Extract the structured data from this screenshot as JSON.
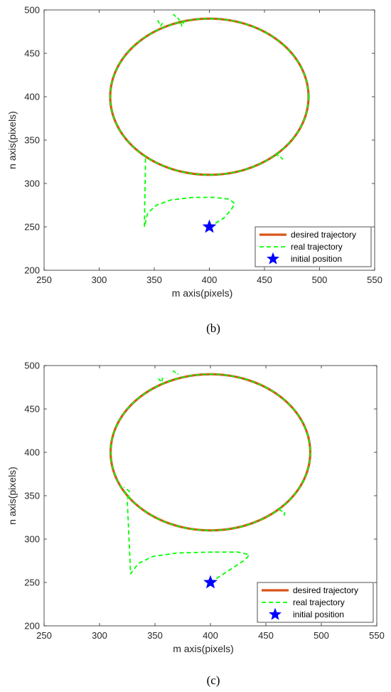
{
  "chart_data": [
    {
      "type": "line",
      "caption": "(b)",
      "xlabel": "m axis(pixels)",
      "ylabel": "n axis(pixels)",
      "xlim": [
        250,
        550
      ],
      "ylim": [
        200,
        500
      ],
      "xticks": [
        250,
        300,
        350,
        400,
        450,
        500,
        550
      ],
      "yticks": [
        200,
        250,
        300,
        350,
        400,
        450,
        500
      ],
      "grid": false,
      "legend_position": "bottom-right",
      "series": [
        {
          "name": "desired trajectory",
          "style": "solid",
          "color": "#d95319",
          "shape": "ellipse",
          "center": [
            400,
            400
          ],
          "radii": [
            90,
            90
          ]
        },
        {
          "name": "real trajectory",
          "style": "dashed",
          "color": "#00ff00",
          "shape": "ellipse",
          "center": [
            400,
            400
          ],
          "radii": [
            90,
            90
          ],
          "approach_path": [
            [
              400,
              250
            ],
            [
              412,
              258
            ],
            [
              421,
              268
            ],
            [
              423,
              278
            ],
            [
              410,
              283
            ],
            [
              385,
              283
            ],
            [
              362,
              280
            ],
            [
              348,
              272
            ],
            [
              342,
              262
            ],
            [
              340,
              250
            ],
            [
              340,
              330
            ],
            [
              344,
              325
            ],
            [
              340,
              320
            ]
          ],
          "approach": [
            [
              400,
              250
            ],
            [
              413,
              260
            ],
            [
              420,
              270
            ],
            [
              423,
              277
            ],
            [
              418,
              282
            ],
            [
              404,
              284
            ],
            [
              385,
              284
            ],
            [
              365,
              281
            ],
            [
              352,
              275
            ],
            [
              344,
              266
            ],
            [
              341,
              250
            ],
            [
              342,
              322
            ],
            [
              342,
              330
            ]
          ],
          "disturbances": [
            [
              [
                353,
                488
              ],
              [
                356,
                482
              ],
              [
                358,
                486
              ]
            ],
            [
              [
                367,
                495
              ],
              [
                372,
                490
              ],
              [
                375,
                482
              ],
              [
                378,
                488
              ]
            ],
            [
              [
                460,
                334
              ],
              [
                465,
                330
              ],
              [
                468,
                326
              ]
            ]
          ]
        },
        {
          "name": "initial position",
          "style": "marker",
          "marker": "star",
          "color": "#0000ff",
          "x": [
            400
          ],
          "y": [
            250
          ]
        }
      ]
    },
    {
      "type": "line",
      "caption": "(c)",
      "xlabel": "m axis(pixels)",
      "ylabel": "n axis(pixels)",
      "xlim": [
        250,
        550
      ],
      "ylim": [
        200,
        500
      ],
      "xticks": [
        250,
        300,
        350,
        400,
        450,
        500,
        550
      ],
      "yticks": [
        200,
        250,
        300,
        350,
        400,
        450,
        500
      ],
      "grid": false,
      "legend_position": "bottom-right",
      "series": [
        {
          "name": "desired trajectory",
          "style": "solid",
          "color": "#d95319",
          "shape": "ellipse",
          "center": [
            400,
            400
          ],
          "radii": [
            90,
            90
          ]
        },
        {
          "name": "real trajectory",
          "style": "dashed",
          "color": "#00ff00",
          "shape": "ellipse",
          "center": [
            400,
            400
          ],
          "radii": [
            90,
            90
          ],
          "approach": [
            [
              400,
              250
            ],
            [
              412,
              260
            ],
            [
              424,
              270
            ],
            [
              432,
              277
            ],
            [
              435,
              282
            ],
            [
              425,
              285
            ],
            [
              400,
              285
            ],
            [
              370,
              284
            ],
            [
              348,
              280
            ],
            [
              335,
              272
            ],
            [
              328,
              260
            ],
            [
              325,
              345
            ],
            [
              327,
              355
            ],
            [
              322,
              360
            ]
          ],
          "disturbances": [
            [
              [
                353,
                485
              ],
              [
                356,
                481
              ],
              [
                357,
                487
              ]
            ],
            [
              [
                366,
                494
              ],
              [
                371,
                490
              ]
            ],
            [
              [
                462,
                334
              ],
              [
                467,
                330
              ],
              [
                466,
                326
              ]
            ]
          ]
        },
        {
          "name": "initial position",
          "style": "marker",
          "marker": "star",
          "color": "#0000ff",
          "x": [
            400
          ],
          "y": [
            250
          ]
        }
      ]
    }
  ]
}
